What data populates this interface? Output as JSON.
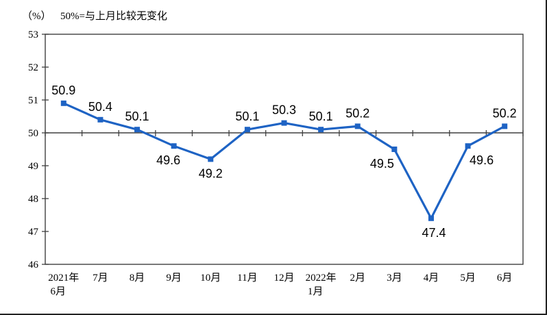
{
  "header": {
    "unit_label": "（%）",
    "note": "50%=与上月比较无变化"
  },
  "chart_data": {
    "type": "line",
    "title": "50%=与上月比较无变化",
    "unit": "（%）",
    "categories": [
      "2021年\n6月",
      "7月",
      "8月",
      "9月",
      "10月",
      "11月",
      "12月",
      "2022年\n1月",
      "2月",
      "3月",
      "4月",
      "5月",
      "6月"
    ],
    "values": [
      50.9,
      50.4,
      50.1,
      49.6,
      49.2,
      50.1,
      50.3,
      50.1,
      50.2,
      49.5,
      47.4,
      49.6,
      50.2
    ],
    "label_side": [
      "above",
      "above",
      "above",
      "below",
      "below",
      "above",
      "above",
      "above",
      "above",
      "below",
      "below",
      "below",
      "above"
    ],
    "label_dx": [
      0,
      0,
      0,
      -8,
      0,
      0,
      0,
      0,
      0,
      -18,
      4,
      20,
      0
    ],
    "ylim": [
      46,
      53
    ],
    "ytick_step": 1,
    "yticks": [
      46,
      47,
      48,
      49,
      50,
      51,
      52,
      53
    ],
    "baseline": 50,
    "grid": false,
    "legend": "none",
    "line_color": "#1e63c4",
    "axis_color": "#3f3f3f",
    "marker": "square"
  }
}
